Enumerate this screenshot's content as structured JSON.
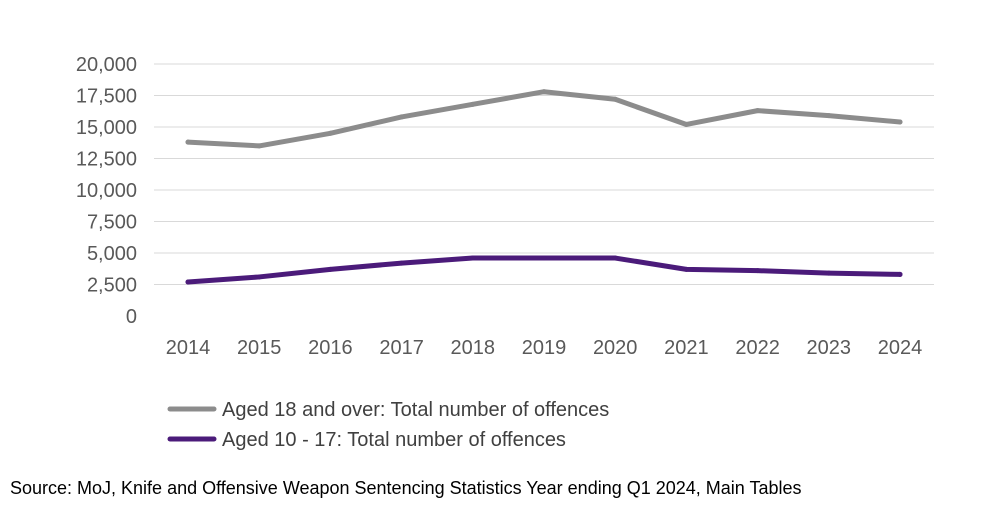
{
  "chart_data": {
    "type": "line",
    "title": "",
    "xlabel": "",
    "ylabel": "",
    "categories": [
      "2014",
      "2015",
      "2016",
      "2017",
      "2018",
      "2019",
      "2020",
      "2021",
      "2022",
      "2023",
      "2024"
    ],
    "y_ticks": [
      "0",
      "2,500",
      "5,000",
      "7,500",
      "10,000",
      "12,500",
      "15,000",
      "17,500",
      "20,000"
    ],
    "ylim": [
      0,
      20000
    ],
    "grid": true,
    "legend_position": "bottom-left",
    "series": [
      {
        "name": "Aged 18 and over: Total number of offences",
        "color": "#8c8c8c",
        "values": [
          13800,
          13500,
          14500,
          15800,
          16800,
          17800,
          17200,
          15200,
          16300,
          15900,
          15400
        ]
      },
      {
        "name": "Aged 10 - 17: Total number of offences",
        "color": "#4b1b7a",
        "values": [
          2700,
          3100,
          3700,
          4200,
          4600,
          4600,
          4600,
          3700,
          3600,
          3400,
          3300
        ]
      }
    ]
  },
  "footer": {
    "source": "Source: MoJ, Knife and Offensive Weapon Sentencing Statistics Year ending Q1 2024, Main Tables"
  }
}
